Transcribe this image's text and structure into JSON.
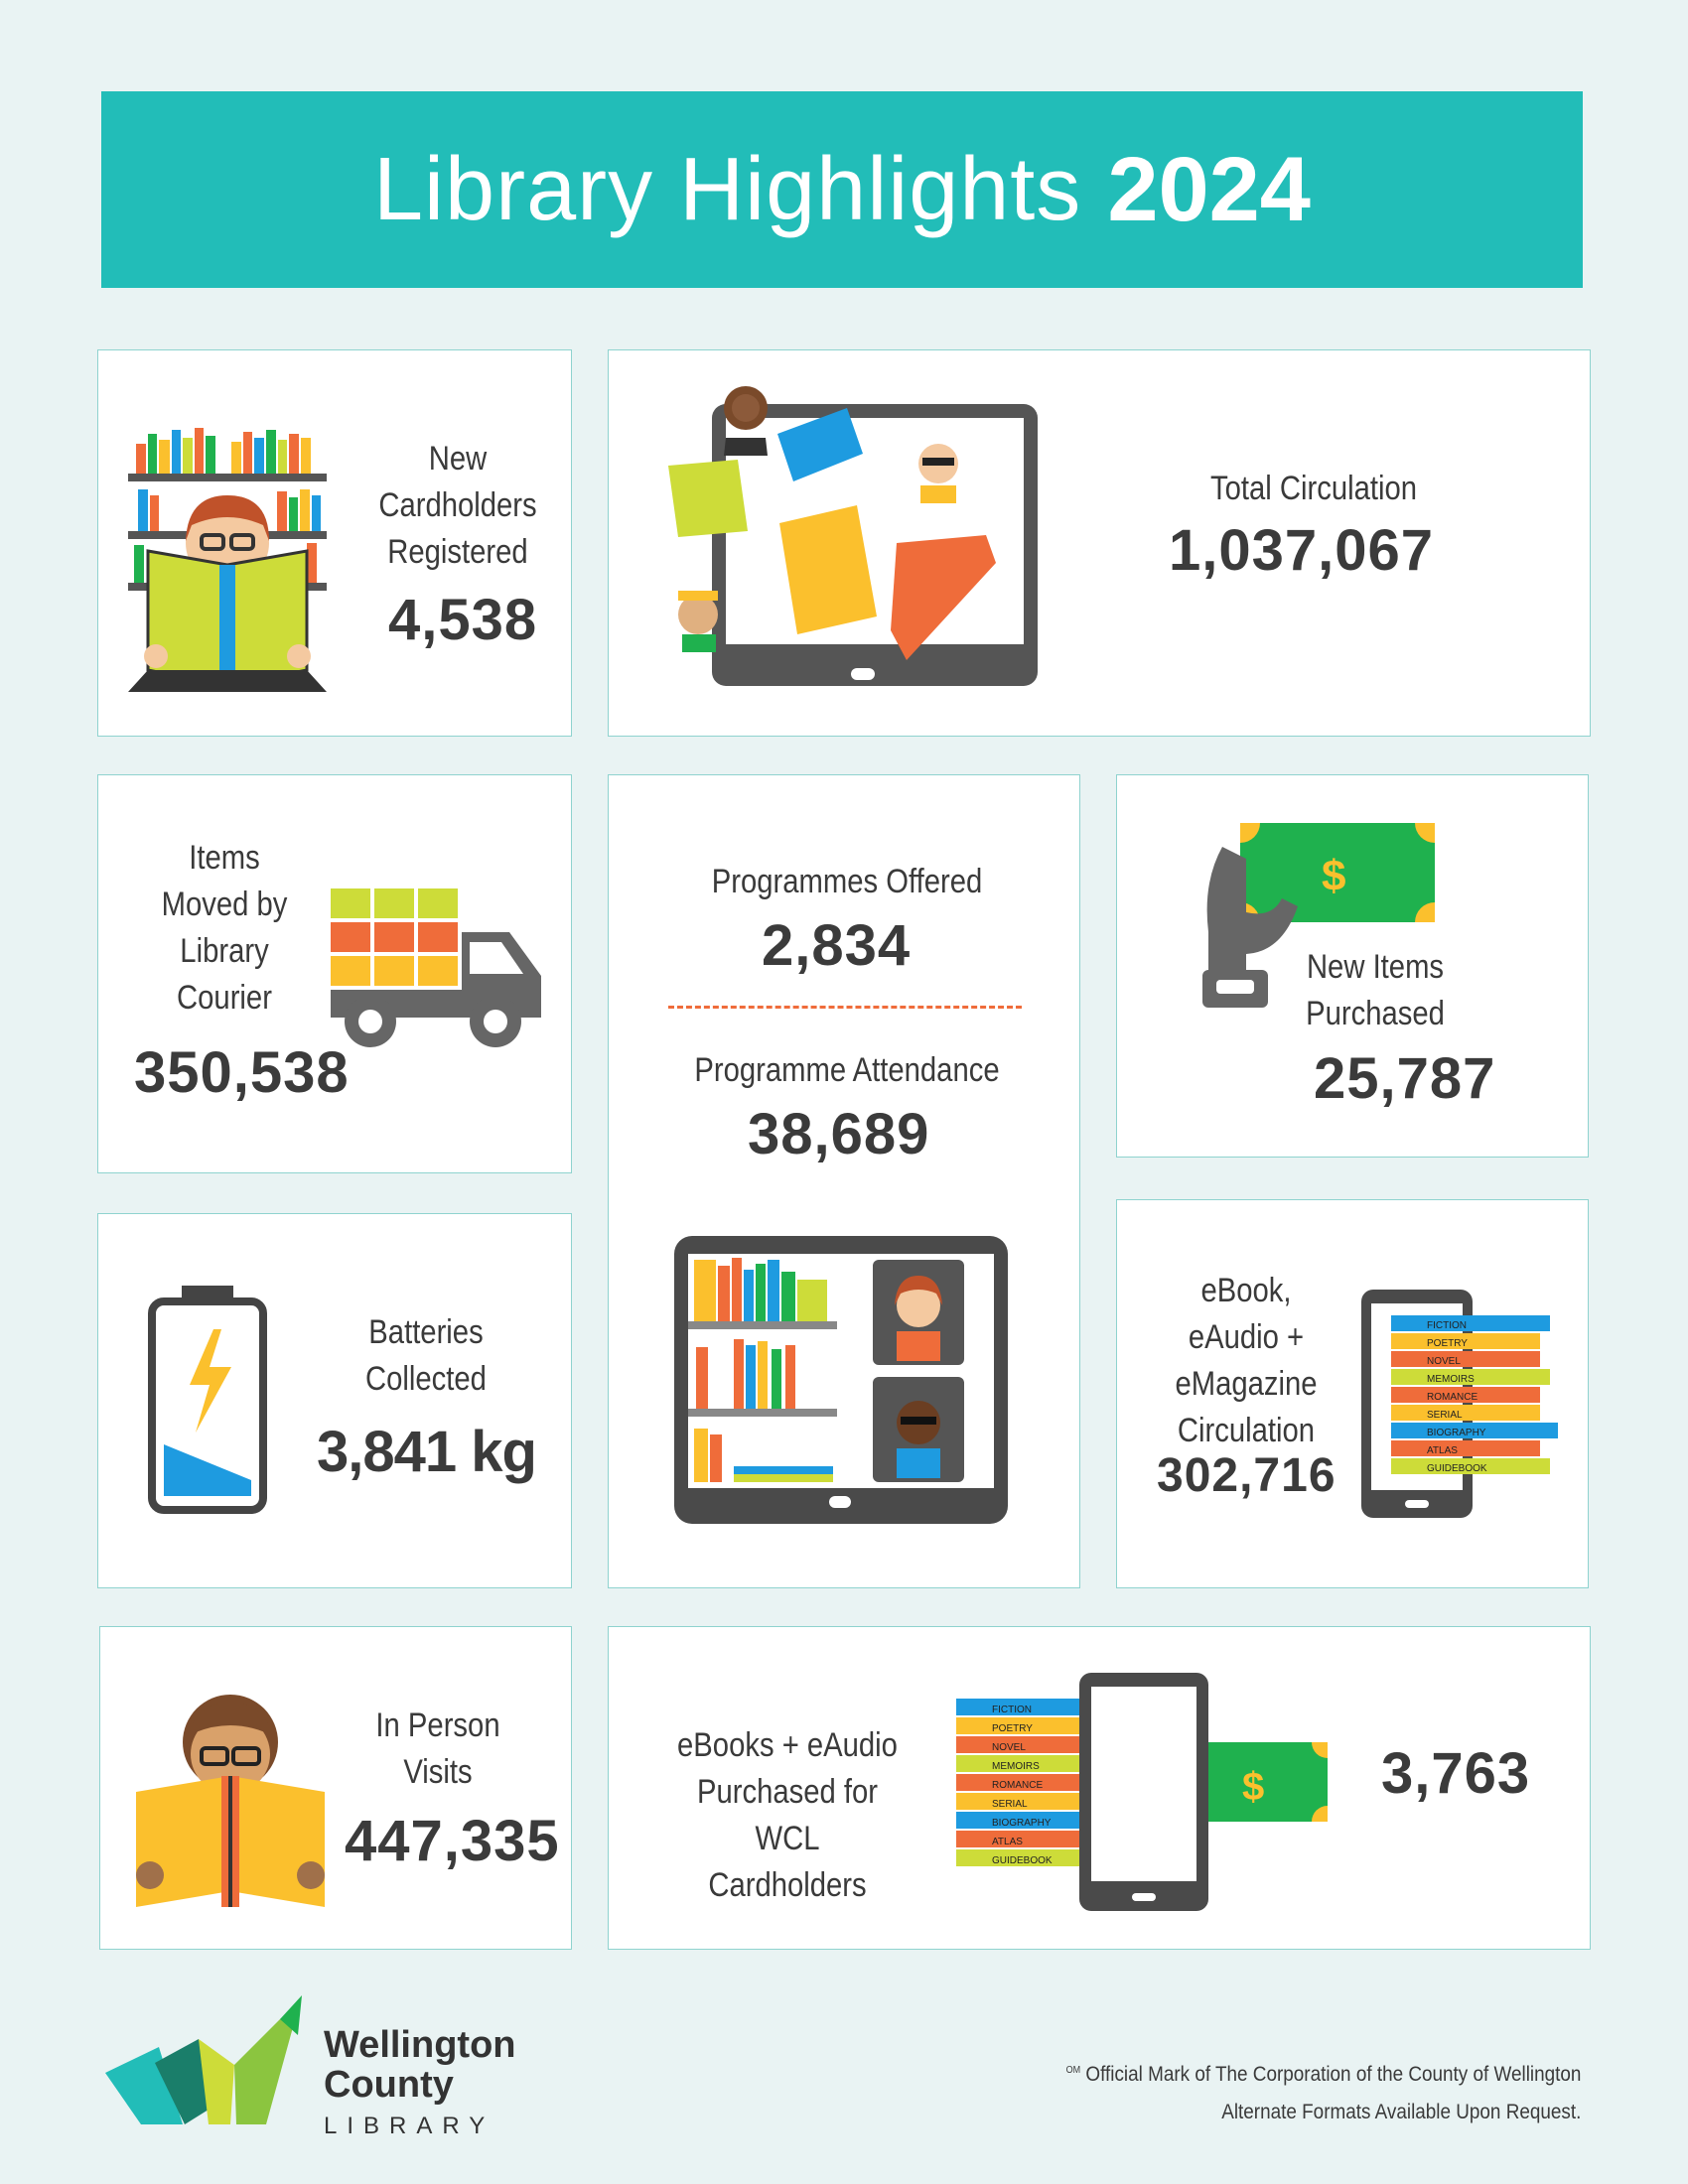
{
  "banner": {
    "title": "Library Highlights",
    "year": "2024"
  },
  "stats": {
    "cardholders": {
      "label_lines": [
        "New",
        "Cardholders",
        "Registered"
      ],
      "value": "4,538"
    },
    "circulation": {
      "label": "Total Circulation",
      "value": "1,037,067"
    },
    "courier": {
      "label_lines": [
        "Items",
        "Moved by",
        "Library",
        "Courier"
      ],
      "value": "350,538"
    },
    "programmes_offered": {
      "label": "Programmes Offered",
      "value": "2,834"
    },
    "programme_attendance": {
      "label": "Programme Attendance",
      "value": "38,689"
    },
    "new_items": {
      "label_lines": [
        "New Items",
        "Purchased"
      ],
      "value": "25,787"
    },
    "batteries": {
      "label_lines": [
        "Batteries",
        "Collected"
      ],
      "value": "3,841 kg"
    },
    "edigital_circ": {
      "label_lines": [
        "eBook,",
        "eAudio +",
        "eMagazine",
        "Circulation"
      ],
      "value": "302,716"
    },
    "visits": {
      "label_lines": [
        "In Person",
        "Visits"
      ],
      "value": "447,335"
    },
    "ebooks_purchased": {
      "label_lines": [
        "eBooks + eAudio",
        "Purchased for",
        "WCL Cardholders"
      ],
      "value": "3,763"
    }
  },
  "book_spines": [
    "FICTION",
    "POETRY",
    "NOVEL",
    "MEMOIRS",
    "ROMANCE",
    "SERIAL",
    "BIOGRAPHY",
    "ATLAS",
    "GUIDEBOOK"
  ],
  "dollar_sign": "$",
  "logo": {
    "line1": "Wellington",
    "line2": "County",
    "line3": "LIBRARY"
  },
  "footer": {
    "mark": "OM",
    "line1": "Official Mark of The Corporation of the County of Wellington",
    "line2": "Alternate Formats Available Upon Request."
  },
  "colors": {
    "teal": "#22bdb8",
    "orange": "#ef6c3a",
    "green": "#1fb14e",
    "yellow": "#fbc02d",
    "blue": "#1e9be0",
    "lime": "#cddc39",
    "grey": "#666666"
  }
}
